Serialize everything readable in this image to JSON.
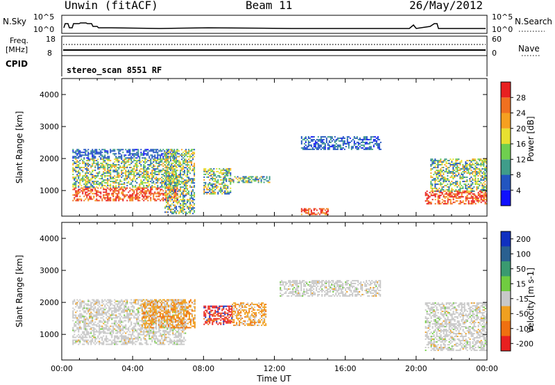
{
  "header": {
    "station": "Unwin (fitACF)",
    "beam": "Beam 11",
    "date": "26/May/2012"
  },
  "nsky_panel": {
    "left_label": "N.Sky",
    "left_ticks": [
      "10^5",
      "10^0"
    ],
    "right_label": "N.Search",
    "right_ticks": [
      "10^5",
      "10^0"
    ]
  },
  "freq_panel": {
    "left_label_1": "Freq.",
    "left_label_2": "[MHz]",
    "left_ticks": [
      "18",
      "8"
    ],
    "right_label": "Nave",
    "right_ticks": [
      "60",
      "0"
    ]
  },
  "cpid_panel": {
    "label": "CPID",
    "text": "stereo_scan 8551 RF"
  },
  "chart_data": [
    {
      "type": "heatmap",
      "name": "power-panel",
      "ylabel": "Slant Range [km]",
      "yticks": [
        "1000",
        "2000",
        "3000",
        "4000"
      ],
      "ylim": [
        200,
        4500
      ],
      "xlim": [
        0,
        24
      ],
      "colorbar": {
        "label": "Power [dB]",
        "ticks": [
          "4",
          "8",
          "12",
          "16",
          "20",
          "24",
          "28"
        ],
        "colors": [
          "#1010ff",
          "#2255c0",
          "#3f9d8a",
          "#6fcf4f",
          "#e8e030",
          "#f6a020",
          "#f07020",
          "#e82020"
        ]
      },
      "regions": [
        {
          "t0": 0.6,
          "t1": 6.5,
          "r0": 700,
          "r1": 1100,
          "level": "high"
        },
        {
          "t0": 0.6,
          "t1": 6.5,
          "r0": 1100,
          "r1": 2000,
          "level": "mid"
        },
        {
          "t0": 0.6,
          "t1": 6.5,
          "r0": 2000,
          "r1": 2300,
          "level": "low"
        },
        {
          "t0": 5.8,
          "t1": 7.5,
          "r0": 300,
          "r1": 2300,
          "level": "mid"
        },
        {
          "t0": 8.0,
          "t1": 9.5,
          "r0": 900,
          "r1": 1700,
          "level": "mid"
        },
        {
          "t0": 9.5,
          "t1": 11.7,
          "r0": 1250,
          "r1": 1450,
          "level": "mid"
        },
        {
          "t0": 13.5,
          "t1": 18.0,
          "r0": 2300,
          "r1": 2700,
          "level": "low"
        },
        {
          "t0": 20.5,
          "t1": 24.0,
          "r0": 600,
          "r1": 1000,
          "level": "high"
        },
        {
          "t0": 20.8,
          "t1": 24.0,
          "r0": 1000,
          "r1": 2000,
          "level": "mid"
        },
        {
          "t0": 13.5,
          "t1": 15.0,
          "r0": 250,
          "r1": 450,
          "level": "high"
        }
      ]
    },
    {
      "type": "heatmap",
      "name": "velocity-panel",
      "ylabel": "Slant Range [km]",
      "xlabel": "Time UT",
      "xticks": [
        "00:00",
        "04:00",
        "08:00",
        "12:00",
        "16:00",
        "20:00",
        "00:00"
      ],
      "yticks": [
        "1000",
        "2000",
        "3000",
        "4000"
      ],
      "ylim": [
        200,
        4500
      ],
      "xlim": [
        0,
        24
      ],
      "colorbar": {
        "label": "Velocity [m s-1]",
        "ticks": [
          "200",
          "100",
          "50",
          "15",
          "-15",
          "-50",
          "-100",
          "-200"
        ],
        "colors": [
          "#1030c0",
          "#2a6090",
          "#3a9a70",
          "#70cc40",
          "#c8c8c8",
          "#f0a020",
          "#f07010",
          "#e82020"
        ]
      },
      "regions": [
        {
          "t0": 0.6,
          "t1": 7.0,
          "r0": 700,
          "r1": 2100,
          "level": "ground"
        },
        {
          "t0": 4.5,
          "t1": 7.5,
          "r0": 1200,
          "r1": 2100,
          "level": "away"
        },
        {
          "t0": 8.0,
          "t1": 9.6,
          "r0": 1300,
          "r1": 1900,
          "level": "fastaway"
        },
        {
          "t0": 9.6,
          "t1": 11.5,
          "r0": 1300,
          "r1": 2000,
          "level": "away"
        },
        {
          "t0": 12.3,
          "t1": 18.0,
          "r0": 2200,
          "r1": 2700,
          "level": "ground"
        },
        {
          "t0": 20.5,
          "t1": 24.0,
          "r0": 500,
          "r1": 2000,
          "level": "ground"
        }
      ]
    }
  ]
}
